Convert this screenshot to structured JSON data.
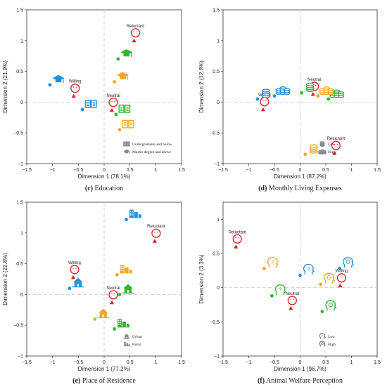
{
  "figure": {
    "panels": [
      {
        "id": "c",
        "caption_letter": "(c)",
        "caption_text": "Education",
        "xlabel": "Dimension 1 (78.1%)",
        "ylabel": "Dimension 2 (21.9%)",
        "xticks": [
          "−1.5",
          "−1",
          "−0.5",
          "0",
          "0.5",
          "1",
          "1.5"
        ],
        "yticks": [
          "−1",
          "−0.5",
          "0",
          "0.5",
          "1",
          "1.5"
        ],
        "legend": [
          {
            "icon": "book-icon",
            "label": "Undergraduate and below"
          },
          {
            "icon": "graduation-cap-icon",
            "label": "Master degree and above"
          }
        ]
      },
      {
        "id": "d",
        "caption_letter": "(d)",
        "caption_text": "Monthly Living Expenses",
        "xlabel": "Dimension 1 (87.2%)",
        "ylabel": "Dimension 2 (12.8%)",
        "xticks": [
          "−1.5",
          "−1",
          "−0.5",
          "0",
          "0.5",
          "1",
          "1.5"
        ],
        "yticks": [
          "−1",
          "−0.5",
          "0",
          "0.5",
          "1",
          "1.5"
        ],
        "legend": [
          {
            "icon": "coins-icon",
            "label": "Low"
          },
          {
            "icon": "coins-stack-icon",
            "label": "High"
          }
        ]
      },
      {
        "id": "e",
        "caption_letter": "(e)",
        "caption_text": "Place of Residence",
        "xlabel": "Dimension 1 (77.2%)",
        "ylabel": "Dimension 2 (22.8%)",
        "xticks": [
          "−1.5",
          "−1",
          "−0.5",
          "0",
          "0.5",
          "1",
          "1.5"
        ],
        "yticks": [
          "−1",
          "−0.5",
          "0",
          "0.5",
          "1",
          "1.5"
        ],
        "legend": [
          {
            "icon": "building-icon",
            "label": "Urban"
          },
          {
            "icon": "house-icon",
            "label": "Rural"
          }
        ]
      },
      {
        "id": "f",
        "caption_letter": "(f)",
        "caption_text": "Animal Welfare Perception",
        "xlabel": "Dimension 1 (96.7%)",
        "ylabel": "Dimension 2 (3.3%)",
        "xticks": [
          "−1.5",
          "−1",
          "−0.5",
          "0",
          "0.5",
          "1",
          "1.5"
        ],
        "yticks": [
          "−1",
          "−0.5",
          "0",
          "0.5",
          "1"
        ],
        "legend": [
          {
            "icon": "head-question-icon",
            "label": "Low"
          },
          {
            "icon": "head-lightbulb-icon",
            "label": "High"
          }
        ]
      }
    ]
  },
  "chart_data": [
    {
      "type": "scatter",
      "panel": "c",
      "xlabel": "Dimension 1 (78.1%)",
      "ylabel": "Dimension 2 (21.9%)",
      "xlim": [
        -1.5,
        1.5
      ],
      "ylim": [
        -1.0,
        1.5
      ],
      "grid": false,
      "legend_position": "bottom-right",
      "colors": {
        "blue": "#1E90E0",
        "green": "#2DB82D",
        "orange": "#F5A623",
        "red": "#D62020"
      },
      "series": [
        {
          "name": "Willing",
          "color": "#D62020",
          "points": [
            {
              "x": -0.59,
              "y": 0.1
            }
          ]
        },
        {
          "name": "Neutral",
          "color": "#D62020",
          "points": [
            {
              "x": 0.15,
              "y": -0.13
            }
          ]
        },
        {
          "name": "Reluctant",
          "color": "#D62020",
          "points": [
            {
              "x": 0.58,
              "y": 1.0
            }
          ]
        },
        {
          "color": "#1E90E0",
          "points": [
            {
              "x": -0.42,
              "y": -0.12
            },
            {
              "x": -1.05,
              "y": 0.28
            }
          ]
        },
        {
          "color": "#2DB82D",
          "points": [
            {
              "x": 0.23,
              "y": -0.2
            },
            {
              "x": 0.27,
              "y": 0.7
            }
          ]
        },
        {
          "color": "#F5A623",
          "points": [
            {
              "x": 0.3,
              "y": -0.45
            },
            {
              "x": 0.2,
              "y": 0.33
            }
          ]
        }
      ]
    },
    {
      "type": "scatter",
      "panel": "d",
      "xlabel": "Dimension 1 (87.2%)",
      "ylabel": "Dimension 2 (12.8%)",
      "xlim": [
        -1.5,
        1.5
      ],
      "ylim": [
        -1.0,
        1.5
      ],
      "grid": false,
      "legend_position": "bottom-right",
      "colors": {
        "blue": "#1E90E0",
        "green": "#2DB82D",
        "orange": "#F5A623",
        "red": "#D62020"
      },
      "series": [
        {
          "name": "Willing",
          "color": "#D62020",
          "points": [
            {
              "x": -0.72,
              "y": -0.12
            }
          ]
        },
        {
          "name": "Neutral",
          "color": "#D62020",
          "points": [
            {
              "x": 0.25,
              "y": 0.13
            }
          ]
        },
        {
          "name": "Reluctant",
          "color": "#D62020",
          "points": [
            {
              "x": 0.67,
              "y": -0.83
            }
          ]
        },
        {
          "color": "#1E90E0",
          "points": [
            {
              "x": -0.83,
              "y": 0.05
            },
            {
              "x": -0.5,
              "y": 0.1
            }
          ]
        },
        {
          "color": "#2DB82D",
          "points": [
            {
              "x": 0.03,
              "y": 0.15
            },
            {
              "x": 0.55,
              "y": 0.05
            }
          ]
        },
        {
          "color": "#F5A623",
          "points": [
            {
              "x": 0.1,
              "y": -0.85
            },
            {
              "x": 0.35,
              "y": 0.1
            }
          ]
        }
      ]
    },
    {
      "type": "scatter",
      "panel": "e",
      "xlabel": "Dimension 1 (77.2%)",
      "ylabel": "Dimension 2 (22.8%)",
      "xlim": [
        -1.5,
        1.5
      ],
      "ylim": [
        -1.0,
        1.5
      ],
      "grid": false,
      "legend_position": "bottom-right",
      "colors": {
        "blue": "#1E90E0",
        "green": "#2DB82D",
        "orange": "#F5A623",
        "red": "#D62020"
      },
      "series": [
        {
          "name": "Willing",
          "color": "#D62020",
          "points": [
            {
              "x": -0.6,
              "y": 0.28
            }
          ]
        },
        {
          "name": "Neutral",
          "color": "#D62020",
          "points": [
            {
              "x": 0.15,
              "y": -0.13
            }
          ]
        },
        {
          "name": "Reluctant",
          "color": "#D62020",
          "points": [
            {
              "x": 0.98,
              "y": 0.87
            }
          ]
        },
        {
          "color": "#1E90E0",
          "points": [
            {
              "x": -0.67,
              "y": 0.1
            },
            {
              "x": 0.43,
              "y": 1.22
            }
          ]
        },
        {
          "color": "#2DB82D",
          "points": [
            {
              "x": 0.3,
              "y": 0.0
            },
            {
              "x": 0.2,
              "y": -0.56
            }
          ]
        },
        {
          "color": "#F5A623",
          "points": [
            {
              "x": -0.18,
              "y": -0.4
            },
            {
              "x": 0.25,
              "y": 0.32
            }
          ]
        }
      ]
    },
    {
      "type": "scatter",
      "panel": "f",
      "xlabel": "Dimension 1 (96.7%)",
      "ylabel": "Dimension 2 (3.3%)",
      "xlim": [
        -1.5,
        1.5
      ],
      "ylim": [
        -1.0,
        1.25
      ],
      "grid": false,
      "legend_position": "bottom-right",
      "colors": {
        "blue": "#1E90E0",
        "green": "#2DB82D",
        "orange": "#F5A623",
        "red": "#D62020"
      },
      "series": [
        {
          "name": "Willing",
          "color": "#D62020",
          "points": [
            {
              "x": 0.78,
              "y": 0.03
            }
          ]
        },
        {
          "name": "Neutral",
          "color": "#D62020",
          "points": [
            {
              "x": -0.18,
              "y": -0.3
            }
          ]
        },
        {
          "name": "Reluctant",
          "color": "#D62020",
          "points": [
            {
              "x": -1.25,
              "y": 0.6
            }
          ]
        },
        {
          "color": "#1E90E0",
          "points": [
            {
              "x": 0.0,
              "y": 0.18
            },
            {
              "x": 0.77,
              "y": 0.28
            }
          ]
        },
        {
          "color": "#2DB82D",
          "points": [
            {
              "x": -0.55,
              "y": -0.12
            },
            {
              "x": 0.43,
              "y": -0.35
            }
          ]
        },
        {
          "color": "#F5A623",
          "points": [
            {
              "x": -0.7,
              "y": 0.28
            },
            {
              "x": 0.4,
              "y": 0.05
            }
          ]
        }
      ]
    }
  ]
}
